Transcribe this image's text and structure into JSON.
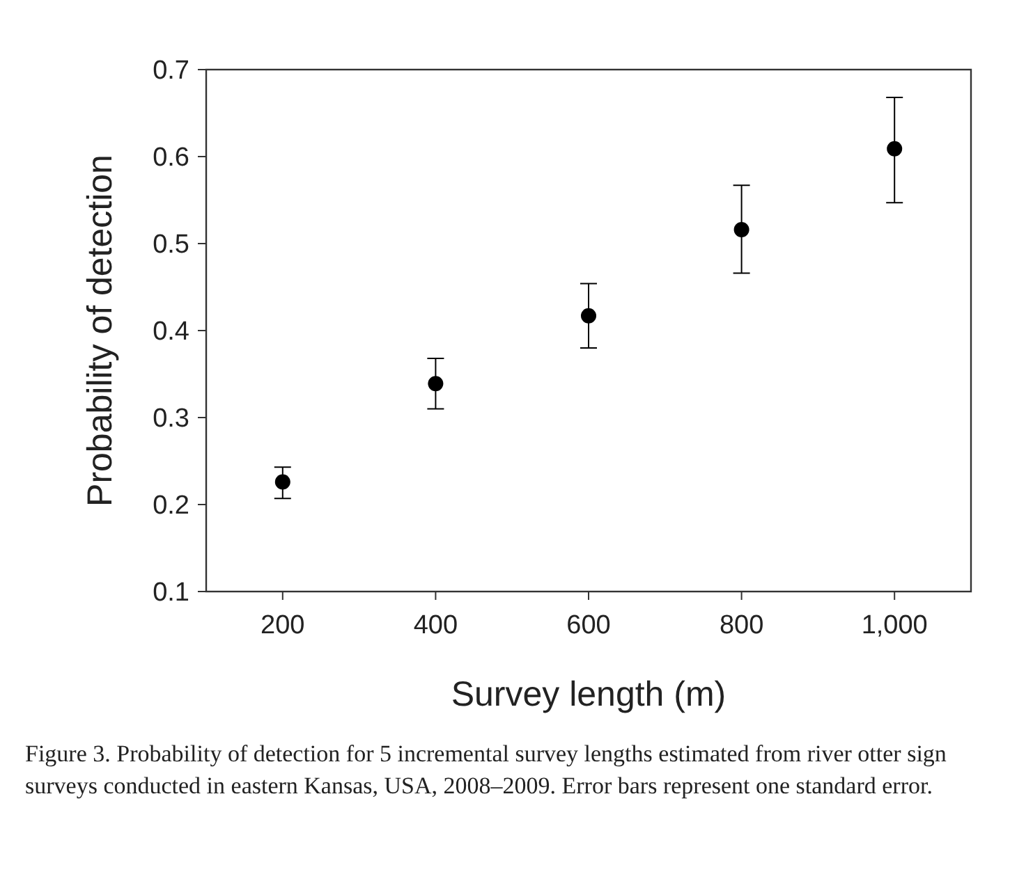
{
  "chart_data": {
    "type": "scatter",
    "xlabel": "Survey length (m)",
    "ylabel": "Probability of detection",
    "x": [
      200,
      400,
      600,
      800,
      1000
    ],
    "values": [
      0.226,
      0.339,
      0.417,
      0.516,
      0.609
    ],
    "errors": [
      [
        0.207,
        0.243
      ],
      [
        0.31,
        0.368
      ],
      [
        0.38,
        0.454
      ],
      [
        0.466,
        0.567
      ],
      [
        0.547,
        0.668
      ]
    ],
    "color": "#000000",
    "marker": "circle",
    "xlim": [
      100,
      1100
    ],
    "xticks": [
      200,
      400,
      600,
      800,
      {
        "value": 1000,
        "label": "1,000"
      }
    ],
    "ylim": [
      0.1,
      0.7
    ],
    "yticks": [
      {
        "value": 0.1,
        "label": "0.1"
      },
      {
        "value": 0.2,
        "label": "0.2"
      },
      {
        "value": 0.3,
        "label": "0.3"
      },
      {
        "value": 0.4,
        "label": "0.4"
      },
      {
        "value": 0.5,
        "label": "0.5"
      },
      {
        "value": 0.6,
        "label": "0.6"
      },
      {
        "value": 0.7,
        "label": "0.7"
      }
    ],
    "grid": false,
    "annotations": [
      "Figure 3.  Probability of detection for 5 incremental survey lengths estimated from river otter sign surveys conducted in eastern Kansas, USA, 2008–2009. Error bars represent one standard error."
    ]
  }
}
